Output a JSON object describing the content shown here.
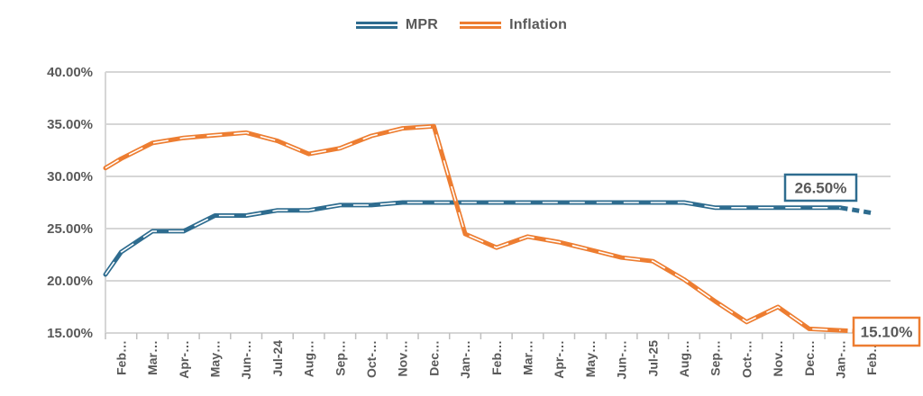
{
  "page": {
    "background_color": "#ffffff",
    "text_color": "#595959"
  },
  "legend": {
    "position": "top-center",
    "items": [
      {
        "label": "MPR",
        "color": "#2E6C8F"
      },
      {
        "label": "Inflation",
        "color": "#ED7D31"
      }
    ]
  },
  "chart_data": {
    "type": "line",
    "title": "",
    "xlabel": "",
    "ylabel": "",
    "ylim": [
      15,
      40
    ],
    "grid": "horizontal",
    "grid_color": "#D6D6D6",
    "tick_color": "#BFBFBF",
    "legend_position": "top-center",
    "y_tick_labels": [
      "40.00%",
      "35.00%",
      "30.00%",
      "25.00%",
      "20.00%",
      "15.00%"
    ],
    "categories": [
      "Feb-24",
      "Mar-24",
      "Apr-24",
      "May-24",
      "Jun-24",
      "Jul-24",
      "Aug-24",
      "Sep-24",
      "Oct-24",
      "Nov-24",
      "Dec-24",
      "Jan-25",
      "Feb-25",
      "Mar-25",
      "Apr-25",
      "May-25",
      "Jun-25",
      "Jul-25",
      "Aug-25",
      "Sep-25",
      "Oct-25",
      "Nov-25",
      "Dec-25",
      "Jan-26",
      "Feb-26"
    ],
    "x_tick_labels_displayed": [
      "Feb…",
      "Mar…",
      "Apr-…",
      "May…",
      "Jun-…",
      "Jul-24",
      "Aug…",
      "Sep…",
      "Oct-…",
      "Nov…",
      "Dec…",
      "Jan-…",
      "Feb…",
      "Mar…",
      "Apr-…",
      "May…",
      "Jun-…",
      "Jul-25",
      "Aug…",
      "Sep…",
      "Oct-…",
      "Nov…",
      "Dec…",
      "Jan-…",
      "Feb…"
    ],
    "series": [
      {
        "name": "MPR",
        "color": "#2E6C8F",
        "line_style": "compound-double, dashed forecast tail",
        "axis_clip_entry_value": 20.6,
        "forecast_from_index": 23,
        "values": [
          22.75,
          24.75,
          24.75,
          26.25,
          26.25,
          26.75,
          26.75,
          27.25,
          27.25,
          27.5,
          27.5,
          27.5,
          27.5,
          27.5,
          27.5,
          27.5,
          27.5,
          27.5,
          27.5,
          27.0,
          27.0,
          27.0,
          27.0,
          27.0,
          26.5
        ]
      },
      {
        "name": "Inflation",
        "color": "#ED7D31",
        "line_style": "compound-double, dashed forecast tail",
        "axis_clip_entry_value": 30.8,
        "forecast_from_index": 23,
        "values": [
          31.7,
          33.2,
          33.69,
          33.95,
          34.19,
          33.4,
          32.15,
          32.7,
          33.88,
          34.6,
          34.8,
          24.48,
          23.18,
          24.23,
          23.71,
          22.97,
          22.22,
          21.88,
          20.12,
          18.02,
          16.05,
          17.5,
          15.4,
          15.25,
          15.1
        ]
      }
    ],
    "annotations": [
      {
        "text": "26.50%",
        "series": "MPR",
        "at_category": "Feb-26",
        "value": 26.5,
        "border_color": "#2E6C8F",
        "fill": "#ffffff",
        "text_color": "#4F4F4F"
      },
      {
        "text": "15.10%",
        "series": "Inflation",
        "at_category": "Feb-26",
        "value": 15.1,
        "border_color": "#ED7D31",
        "fill": "#ffffff",
        "text_color": "#4F4F4F"
      }
    ]
  }
}
